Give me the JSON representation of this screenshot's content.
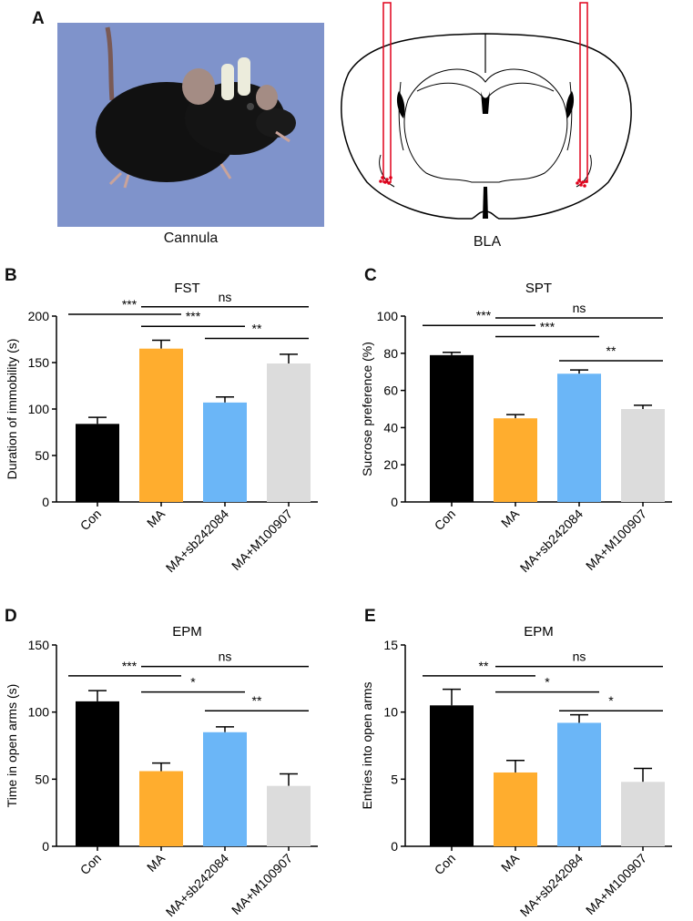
{
  "panels": {
    "A": "A",
    "B": "B",
    "C": "C",
    "D": "D",
    "E": "E"
  },
  "captions": {
    "photo": "Cannula",
    "brain": "BLA"
  },
  "colors": {
    "Con": "#000000",
    "MA": "#ffad2e",
    "MA+sb242084": "#6bb6f7",
    "MA+M100907": "#dcdcdc",
    "photo_bg": "#7f93cb",
    "cannula": "#e0001a"
  },
  "chart_data": [
    {
      "id": "B",
      "type": "bar",
      "title": "FST",
      "ylabel": "Duration of immobility (s)",
      "xlabel": "",
      "categories": [
        "Con",
        "MA",
        "MA+sb242084",
        "MA+M100907"
      ],
      "values": [
        84,
        165,
        107,
        149
      ],
      "errors": [
        7,
        9,
        6,
        10
      ],
      "ylim": [
        0,
        200
      ],
      "yticks": [
        0,
        50,
        100,
        150,
        200
      ],
      "brackets": [
        {
          "from": 0,
          "to": 1,
          "label": "***",
          "y": 202
        },
        {
          "from": 1,
          "to": 3,
          "label": "ns",
          "y": 210
        },
        {
          "from": 1,
          "to": 2,
          "label": "***",
          "y": 189
        },
        {
          "from": 2,
          "to": 3,
          "label": "**",
          "y": 176
        }
      ]
    },
    {
      "id": "C",
      "type": "bar",
      "title": "SPT",
      "ylabel": "Sucrose preference (%)",
      "xlabel": "",
      "categories": [
        "Con",
        "MA",
        "MA+sb242084",
        "MA+M100907"
      ],
      "values": [
        79,
        45,
        69,
        50
      ],
      "errors": [
        1.5,
        2,
        2,
        2
      ],
      "ylim": [
        0,
        100
      ],
      "yticks": [
        0,
        20,
        40,
        60,
        80,
        100
      ],
      "brackets": [
        {
          "from": 0,
          "to": 1,
          "label": "***",
          "y": 95
        },
        {
          "from": 1,
          "to": 3,
          "label": "ns",
          "y": 99
        },
        {
          "from": 1,
          "to": 2,
          "label": "***",
          "y": 89
        },
        {
          "from": 2,
          "to": 3,
          "label": "**",
          "y": 76
        }
      ]
    },
    {
      "id": "D",
      "type": "bar",
      "title": "EPM",
      "ylabel": "Time in open arms (s)",
      "xlabel": "",
      "categories": [
        "Con",
        "MA",
        "MA+sb242084",
        "MA+M100907"
      ],
      "values": [
        108,
        56,
        85,
        45
      ],
      "errors": [
        8,
        6,
        4,
        9
      ],
      "ylim": [
        0,
        150
      ],
      "yticks": [
        0,
        50,
        100,
        150
      ],
      "brackets": [
        {
          "from": 0,
          "to": 1,
          "label": "***",
          "y": 127
        },
        {
          "from": 1,
          "to": 3,
          "label": "ns",
          "y": 134
        },
        {
          "from": 1,
          "to": 2,
          "label": "*",
          "y": 115
        },
        {
          "from": 2,
          "to": 3,
          "label": "**",
          "y": 101
        }
      ]
    },
    {
      "id": "E",
      "type": "bar",
      "title": "EPM",
      "ylabel": "Entries into open arms",
      "xlabel": "",
      "categories": [
        "Con",
        "MA",
        "MA+sb242084",
        "MA+M100907"
      ],
      "values": [
        10.5,
        5.5,
        9.2,
        4.8
      ],
      "errors": [
        1.2,
        0.9,
        0.6,
        1.0
      ],
      "ylim": [
        0,
        15
      ],
      "yticks": [
        0,
        5,
        10,
        15
      ],
      "brackets": [
        {
          "from": 0,
          "to": 1,
          "label": "**",
          "y": 12.7
        },
        {
          "from": 1,
          "to": 3,
          "label": "ns",
          "y": 13.4
        },
        {
          "from": 1,
          "to": 2,
          "label": "*",
          "y": 11.5
        },
        {
          "from": 2,
          "to": 3,
          "label": "*",
          "y": 10.1
        }
      ]
    }
  ]
}
